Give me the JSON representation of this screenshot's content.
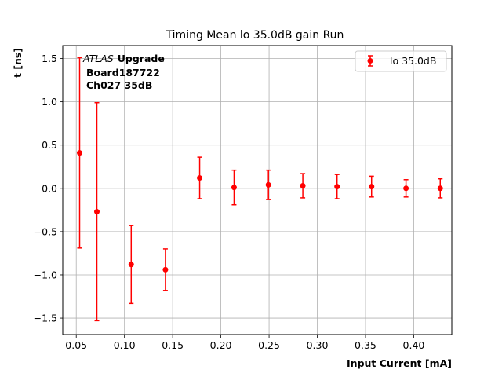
{
  "chart_data": {
    "type": "scatter",
    "title": "Timing Mean lo 35.0dB gain Run",
    "xlabel": "Input Current [mA]",
    "ylabel": "t [ns]",
    "xlim": [
      0.036,
      0.4395
    ],
    "ylim": [
      -1.69,
      1.65
    ],
    "xticks": [
      "0.05",
      "0.10",
      "0.15",
      "0.20",
      "0.25",
      "0.30",
      "0.35",
      "0.40"
    ],
    "yticks": [
      "−1.5",
      "−1.0",
      "−0.5",
      "0.0",
      "0.5",
      "1.0",
      "1.5"
    ],
    "grid": true,
    "legend_position": "top-right",
    "annotation": {
      "atlas": "ATLAS",
      "upgrade": "Upgrade",
      "board": "Board187722",
      "channel": "Ch027 35dB"
    },
    "series": [
      {
        "name": "lo 35.0dB",
        "color": "#ff0000",
        "x": [
          0.0535,
          0.0714,
          0.107,
          0.1425,
          0.178,
          0.2137,
          0.2493,
          0.285,
          0.3205,
          0.3563,
          0.392,
          0.4275
        ],
        "y": [
          0.41,
          -0.27,
          -0.88,
          -0.94,
          0.12,
          0.01,
          0.04,
          0.03,
          0.02,
          0.02,
          0.0,
          0.0
        ],
        "yerr": [
          1.1,
          1.26,
          0.45,
          0.24,
          0.24,
          0.2,
          0.17,
          0.14,
          0.14,
          0.12,
          0.1,
          0.11
        ]
      }
    ]
  }
}
